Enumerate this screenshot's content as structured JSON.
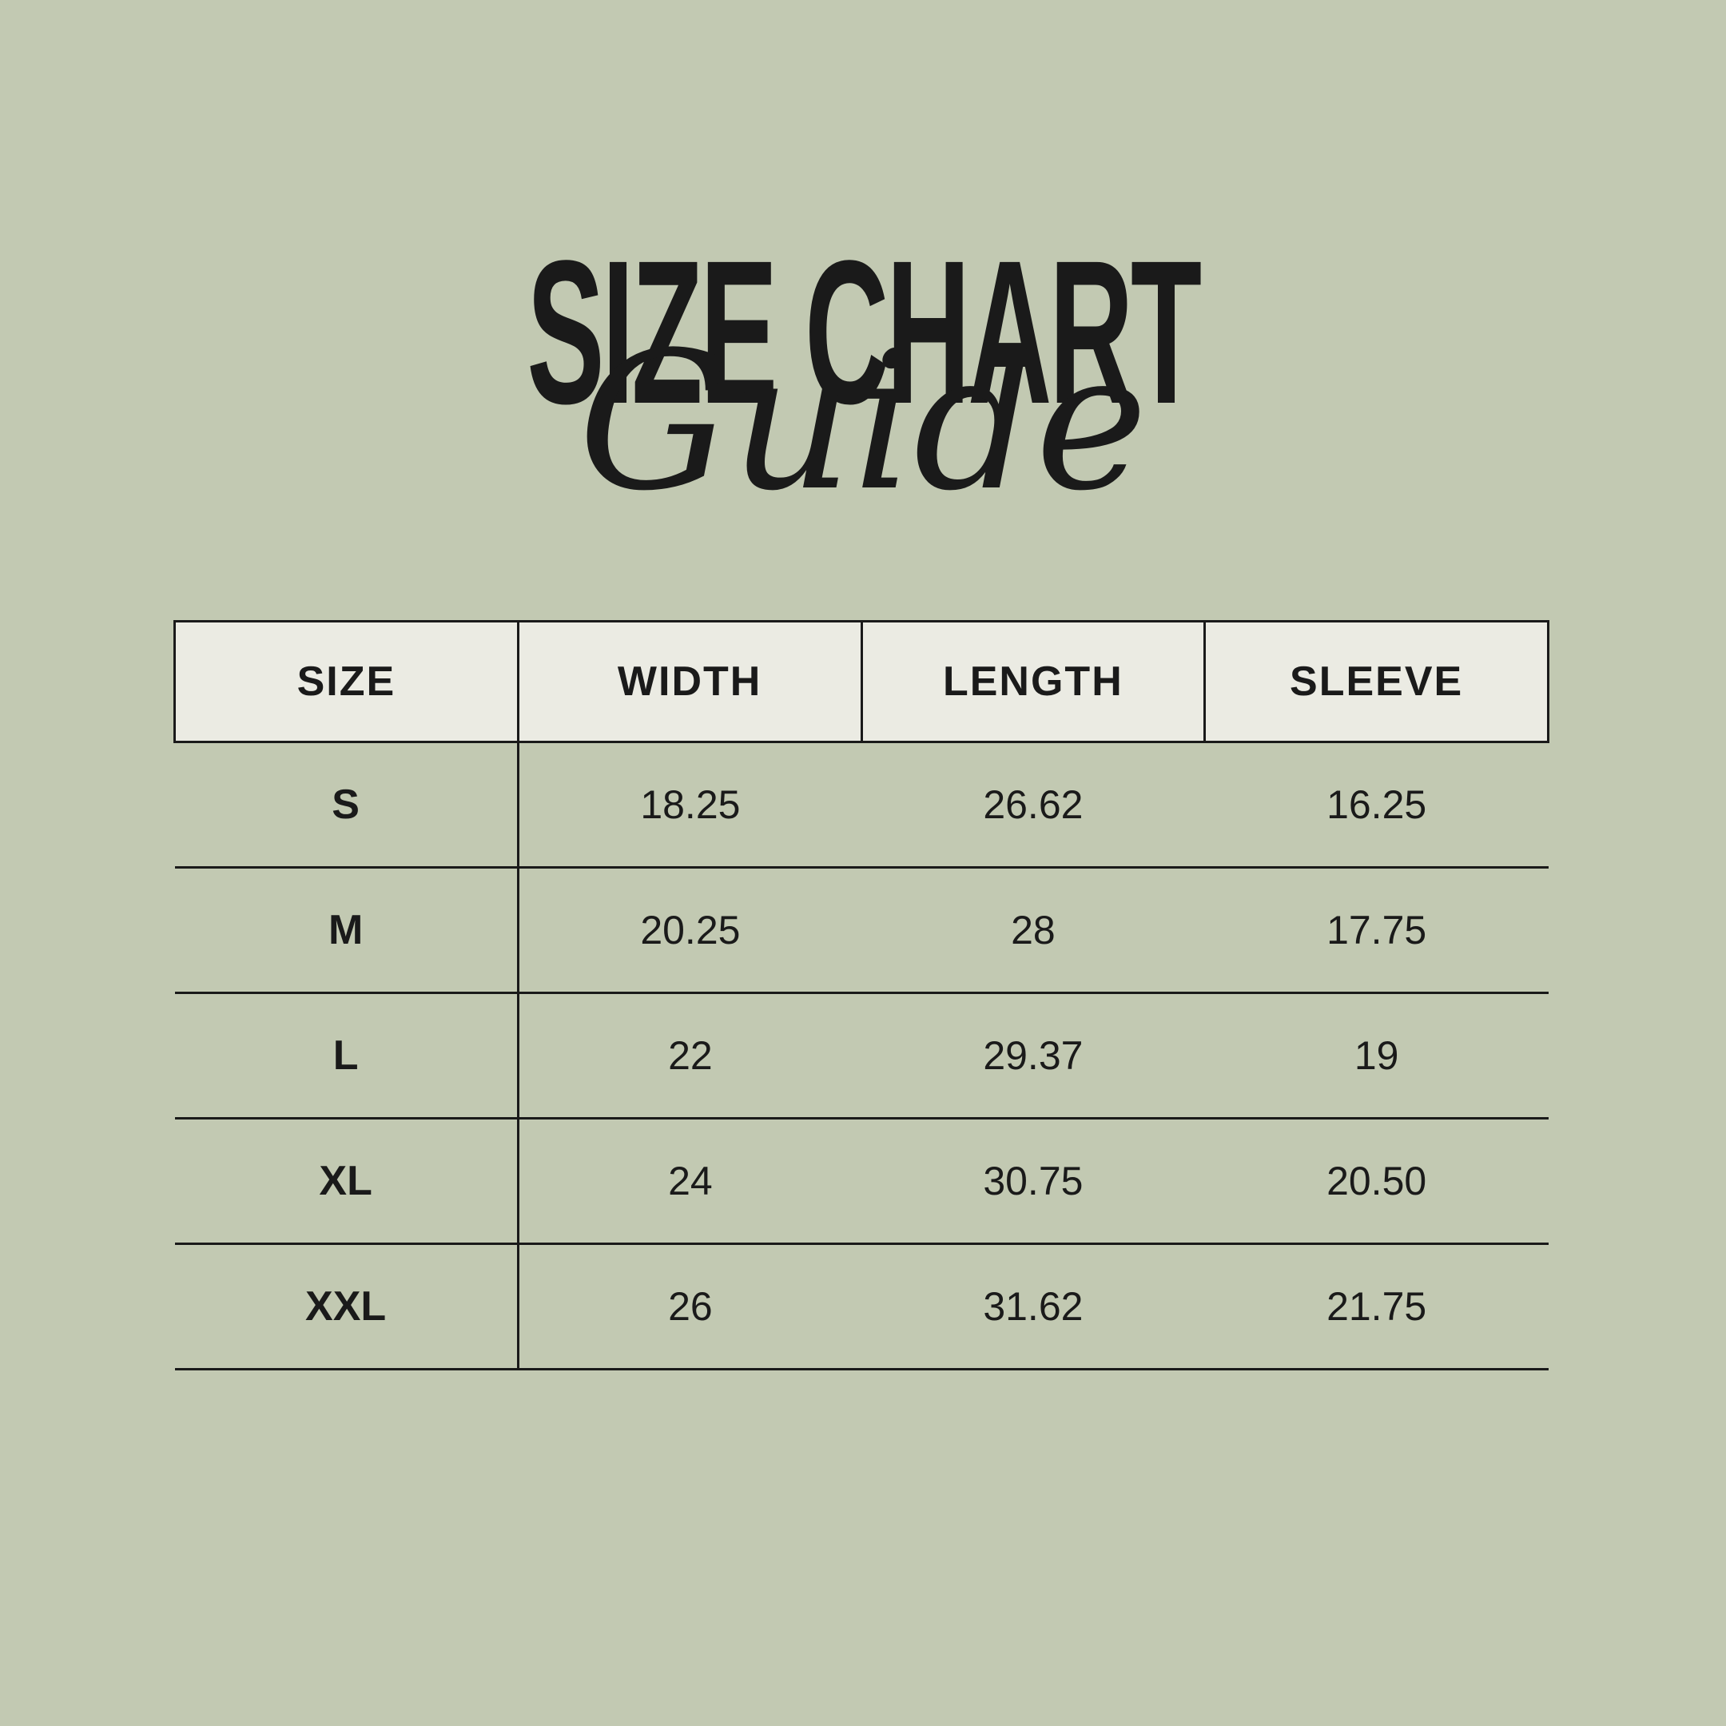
{
  "colors": {
    "background": "#c2c9b2",
    "panel": "#ebebe3",
    "ink": "#1a1a1a"
  },
  "chart_data": {
    "type": "table",
    "title": "SIZE CHART",
    "subtitle": "Guide",
    "columns": [
      "SIZE",
      "WIDTH",
      "LENGTH",
      "SLEEVE"
    ],
    "rows": [
      [
        "S",
        "18.25",
        "26.62",
        "16.25"
      ],
      [
        "M",
        "20.25",
        "28",
        "17.75"
      ],
      [
        "L",
        "22",
        "29.37",
        "19"
      ],
      [
        "XL",
        "24",
        "30.75",
        "20.50"
      ],
      [
        "XXL",
        "26",
        "31.62",
        "21.75"
      ]
    ],
    "layout_hints": {
      "header_background": "#ebebe3",
      "body_background": "transparent",
      "vertical_rule_after_first_column": true,
      "horizontal_row_separators": true
    }
  }
}
